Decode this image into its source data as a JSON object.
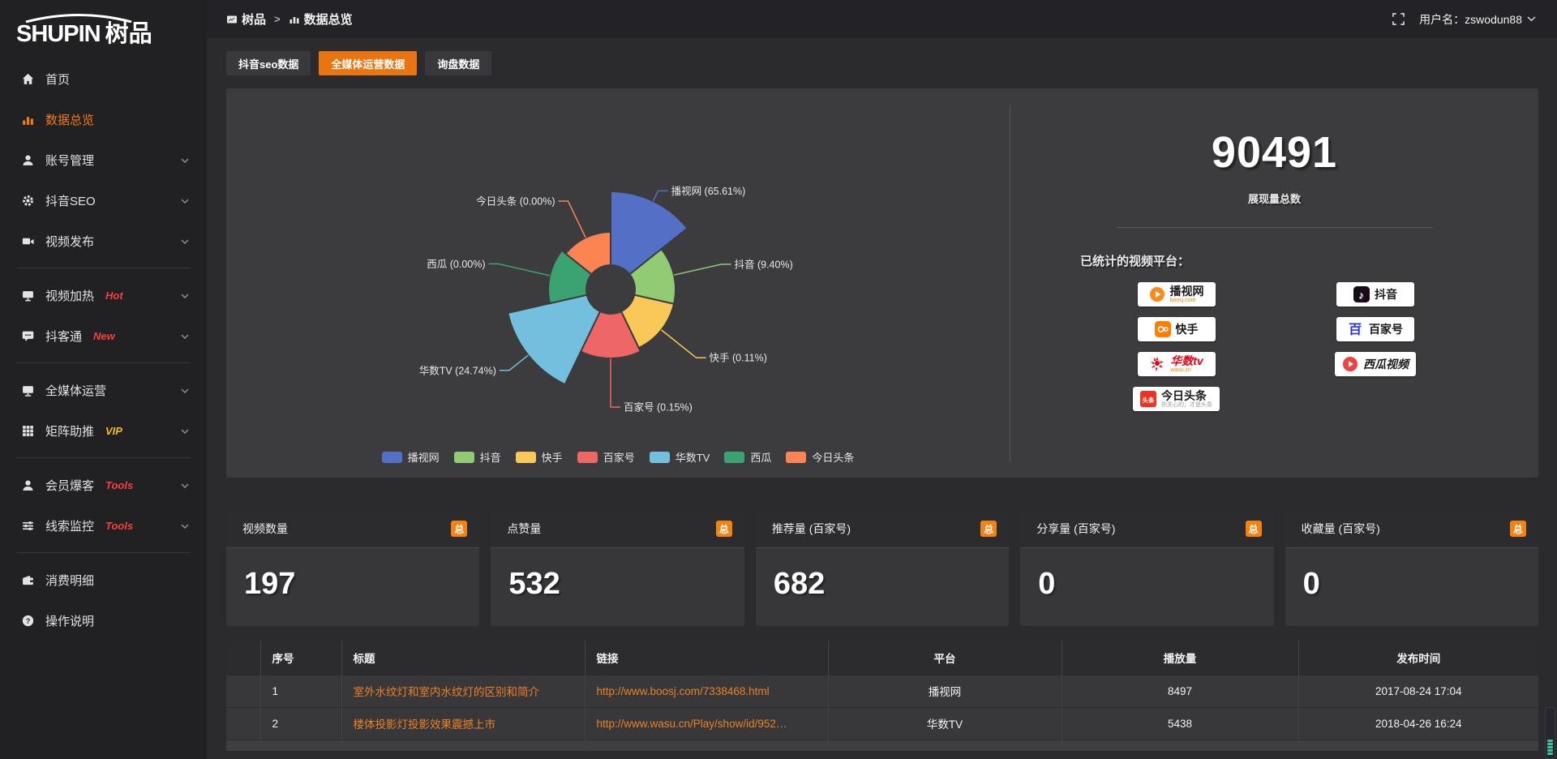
{
  "app": {
    "logo_en": "SHUPIN",
    "logo_cn": "树品"
  },
  "topbar": {
    "breadcrumb_root": "树品",
    "breadcrumb_sep": ">",
    "breadcrumb_current": "数据总览",
    "username": "用户名：zswodun88"
  },
  "sidebar": {
    "items": [
      {
        "label": "首页",
        "icon": "home"
      },
      {
        "label": "数据总览",
        "icon": "bar-chart",
        "active": true
      },
      {
        "label": "账号管理",
        "icon": "user",
        "expandable": true
      },
      {
        "label": "抖音SEO",
        "icon": "gear",
        "expandable": true
      },
      {
        "label": "视频发布",
        "icon": "video",
        "expandable": true
      },
      {
        "type": "divider"
      },
      {
        "label": "视频加热",
        "icon": "screen",
        "badge": "Hot",
        "badge_color": "red",
        "expandable": true
      },
      {
        "label": "抖客通",
        "icon": "chat",
        "badge": "New",
        "badge_color": "red",
        "expandable": true
      },
      {
        "type": "divider"
      },
      {
        "label": "全媒体运营",
        "icon": "monitor",
        "expandable": true
      },
      {
        "label": "矩阵助推",
        "icon": "grid",
        "badge": "VIP",
        "badge_color": "yellow",
        "expandable": true
      },
      {
        "type": "divider"
      },
      {
        "label": "会员爆客",
        "icon": "user2",
        "badge": "Tools",
        "badge_color": "red",
        "expandable": true
      },
      {
        "label": "线索监控",
        "icon": "sliders",
        "badge": "Tools",
        "badge_color": "red",
        "expandable": true
      },
      {
        "type": "divider"
      },
      {
        "label": "消费明细",
        "icon": "wallet"
      },
      {
        "label": "操作说明",
        "icon": "question"
      }
    ]
  },
  "tabs": {
    "items": [
      {
        "label": "抖音seo数据"
      },
      {
        "label": "全媒体运营数据",
        "active": true
      },
      {
        "label": "询盘数据"
      }
    ]
  },
  "chart_data": {
    "type": "pie",
    "subtype": "nightingale-rose",
    "title": "",
    "legend_position": "bottom",
    "items": [
      {
        "name": "播视网",
        "pct": 65.61,
        "color": "#5470C6"
      },
      {
        "name": "抖音",
        "pct": 9.4,
        "color": "#91CC75"
      },
      {
        "name": "快手",
        "pct": 0.11,
        "color": "#FAC858"
      },
      {
        "name": "百家号",
        "pct": 0.15,
        "color": "#EE6666"
      },
      {
        "name": "华数TV",
        "pct": 24.74,
        "color": "#73C0DE"
      },
      {
        "name": "西瓜",
        "pct": 0.0,
        "color": "#3BA272"
      },
      {
        "name": "今日头条",
        "pct": 0.0,
        "color": "#FC8452"
      }
    ],
    "layout": {
      "inner_radius": 30,
      "display_radii": [
        121,
        80,
        80,
        85,
        130,
        77,
        71
      ],
      "label_line_len": [
        14,
        60,
        55,
        60,
        30,
        65,
        50
      ]
    }
  },
  "summary": {
    "total_value": "90491",
    "total_label": "展现量总数",
    "platforms_label": "已统计的视频平台：",
    "platform_columns": [
      [
        {
          "logo": "boosj",
          "label": "播视网",
          "sub": "boosj.com"
        },
        {
          "logo": "kuaishou",
          "label": "快手"
        },
        {
          "logo": "wasu",
          "label": "华数tv",
          "sub": "wasu.cn",
          "label_style": "red"
        },
        {
          "logo": "toutiao",
          "label": "今日头条",
          "sub": "你关心的，才是头条",
          "sub_style": "gray"
        }
      ],
      [
        {
          "logo": "douyin",
          "label": "抖音"
        },
        {
          "logo": "baijiahao",
          "label": "百家号"
        },
        {
          "logo": "xigua",
          "label": "西瓜视频",
          "label_style": "italic"
        }
      ]
    ]
  },
  "stat_cards": [
    {
      "title": "视频数量",
      "badge": "总",
      "value": "197"
    },
    {
      "title": "点赞量",
      "badge": "总",
      "value": "532"
    },
    {
      "title": "推荐量 (百家号)",
      "badge": "总",
      "value": "682"
    },
    {
      "title": "分享量 (百家号)",
      "badge": "总",
      "value": "0"
    },
    {
      "title": "收藏量 (百家号)",
      "badge": "总",
      "value": "0"
    }
  ],
  "table": {
    "headers": [
      "序号",
      "标题",
      "链接",
      "平台",
      "播放量",
      "发布时间"
    ],
    "rows": [
      {
        "index": "1",
        "title": "室外水纹灯和室内水纹灯的区别和简介",
        "link": "http://www.boosj.com/7338468.html",
        "platform": "播视网",
        "plays": "8497",
        "time": "2017-08-24 17:04"
      },
      {
        "index": "2",
        "title": "楼体投影灯投影效果震撼上市",
        "link": "http://www.wasu.cn/Play/show/id/952…",
        "platform": "华数TV",
        "plays": "5438",
        "time": "2018-04-26 16:24"
      }
    ]
  }
}
